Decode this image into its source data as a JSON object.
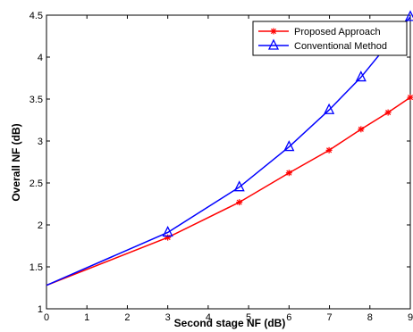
{
  "chart_data": {
    "type": "line",
    "xlabel": "Second stage NF (dB)",
    "ylabel": "Overall NF (dB)",
    "xlim": [
      0,
      9
    ],
    "ylim": [
      1,
      4.5
    ],
    "xticks": [
      0,
      1,
      2,
      3,
      4,
      5,
      6,
      7,
      8,
      9
    ],
    "yticks": [
      1,
      1.5,
      2,
      2.5,
      3,
      3.5,
      4,
      4.5
    ],
    "ytick_labels": [
      "1",
      "1.5",
      "2",
      "2.5",
      "3",
      "3.5",
      "4",
      "4.5"
    ],
    "grid": false,
    "legend_position": "top-right",
    "series": [
      {
        "name": "Proposed Approach",
        "color": "#ff0000",
        "marker": "star",
        "x": [
          0,
          3,
          4.77,
          6,
          6.99,
          7.78,
          8.45,
          9
        ],
        "y": [
          1.28,
          1.85,
          2.27,
          2.62,
          2.89,
          3.14,
          3.34,
          3.52
        ]
      },
      {
        "name": "Conventional Method",
        "color": "#0000ff",
        "marker": "triangle",
        "x": [
          0,
          3,
          4.77,
          6,
          6.99,
          7.78,
          9
        ],
        "y": [
          1.28,
          1.91,
          2.45,
          2.93,
          3.37,
          3.76,
          4.48
        ]
      }
    ]
  }
}
